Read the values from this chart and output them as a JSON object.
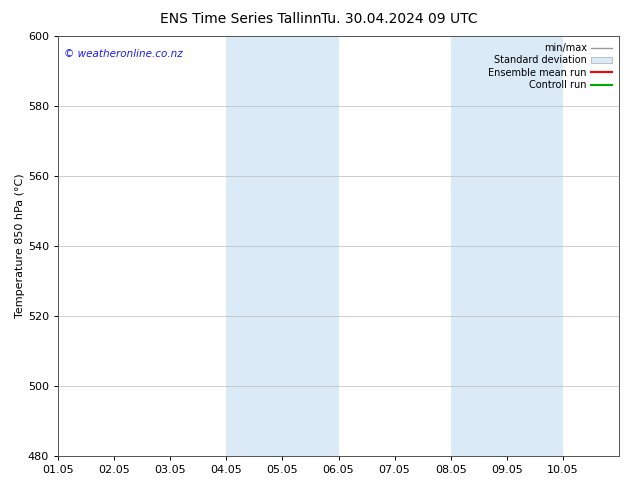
{
  "title_left": "ENS Time Series Tallinn",
  "title_right": "Tu. 30.04.2024 09 UTC",
  "ylabel": "Temperature 850 hPa (°C)",
  "ylim": [
    480,
    600
  ],
  "yticks": [
    480,
    500,
    520,
    540,
    560,
    580,
    600
  ],
  "xtick_labels": [
    "01.05",
    "02.05",
    "03.05",
    "04.05",
    "05.05",
    "06.05",
    "07.05",
    "08.05",
    "09.05",
    "10.05"
  ],
  "shaded_regions": [
    {
      "xmin": 3.0,
      "xmax": 4.0,
      "color": "#daeaf7"
    },
    {
      "xmin": 4.0,
      "xmax": 5.0,
      "color": "#daeaf7"
    },
    {
      "xmin": 7.0,
      "xmax": 8.0,
      "color": "#daeaf7"
    },
    {
      "xmin": 8.0,
      "xmax": 9.0,
      "color": "#daeaf7"
    }
  ],
  "watermark": "© weatheronline.co.nz",
  "watermark_color": "#1a1aff",
  "legend_labels": [
    "min/max",
    "Standard deviation",
    "Ensemble mean run",
    "Controll run"
  ],
  "legend_line_colors": [
    "#999999",
    "#bbbbbb",
    "#ff0000",
    "#00aa00"
  ],
  "background_color": "#ffffff",
  "plot_bg_color": "#ffffff",
  "grid_color": "#bbbbbb",
  "title_fontsize": 10,
  "axis_fontsize": 8,
  "tick_fontsize": 8
}
